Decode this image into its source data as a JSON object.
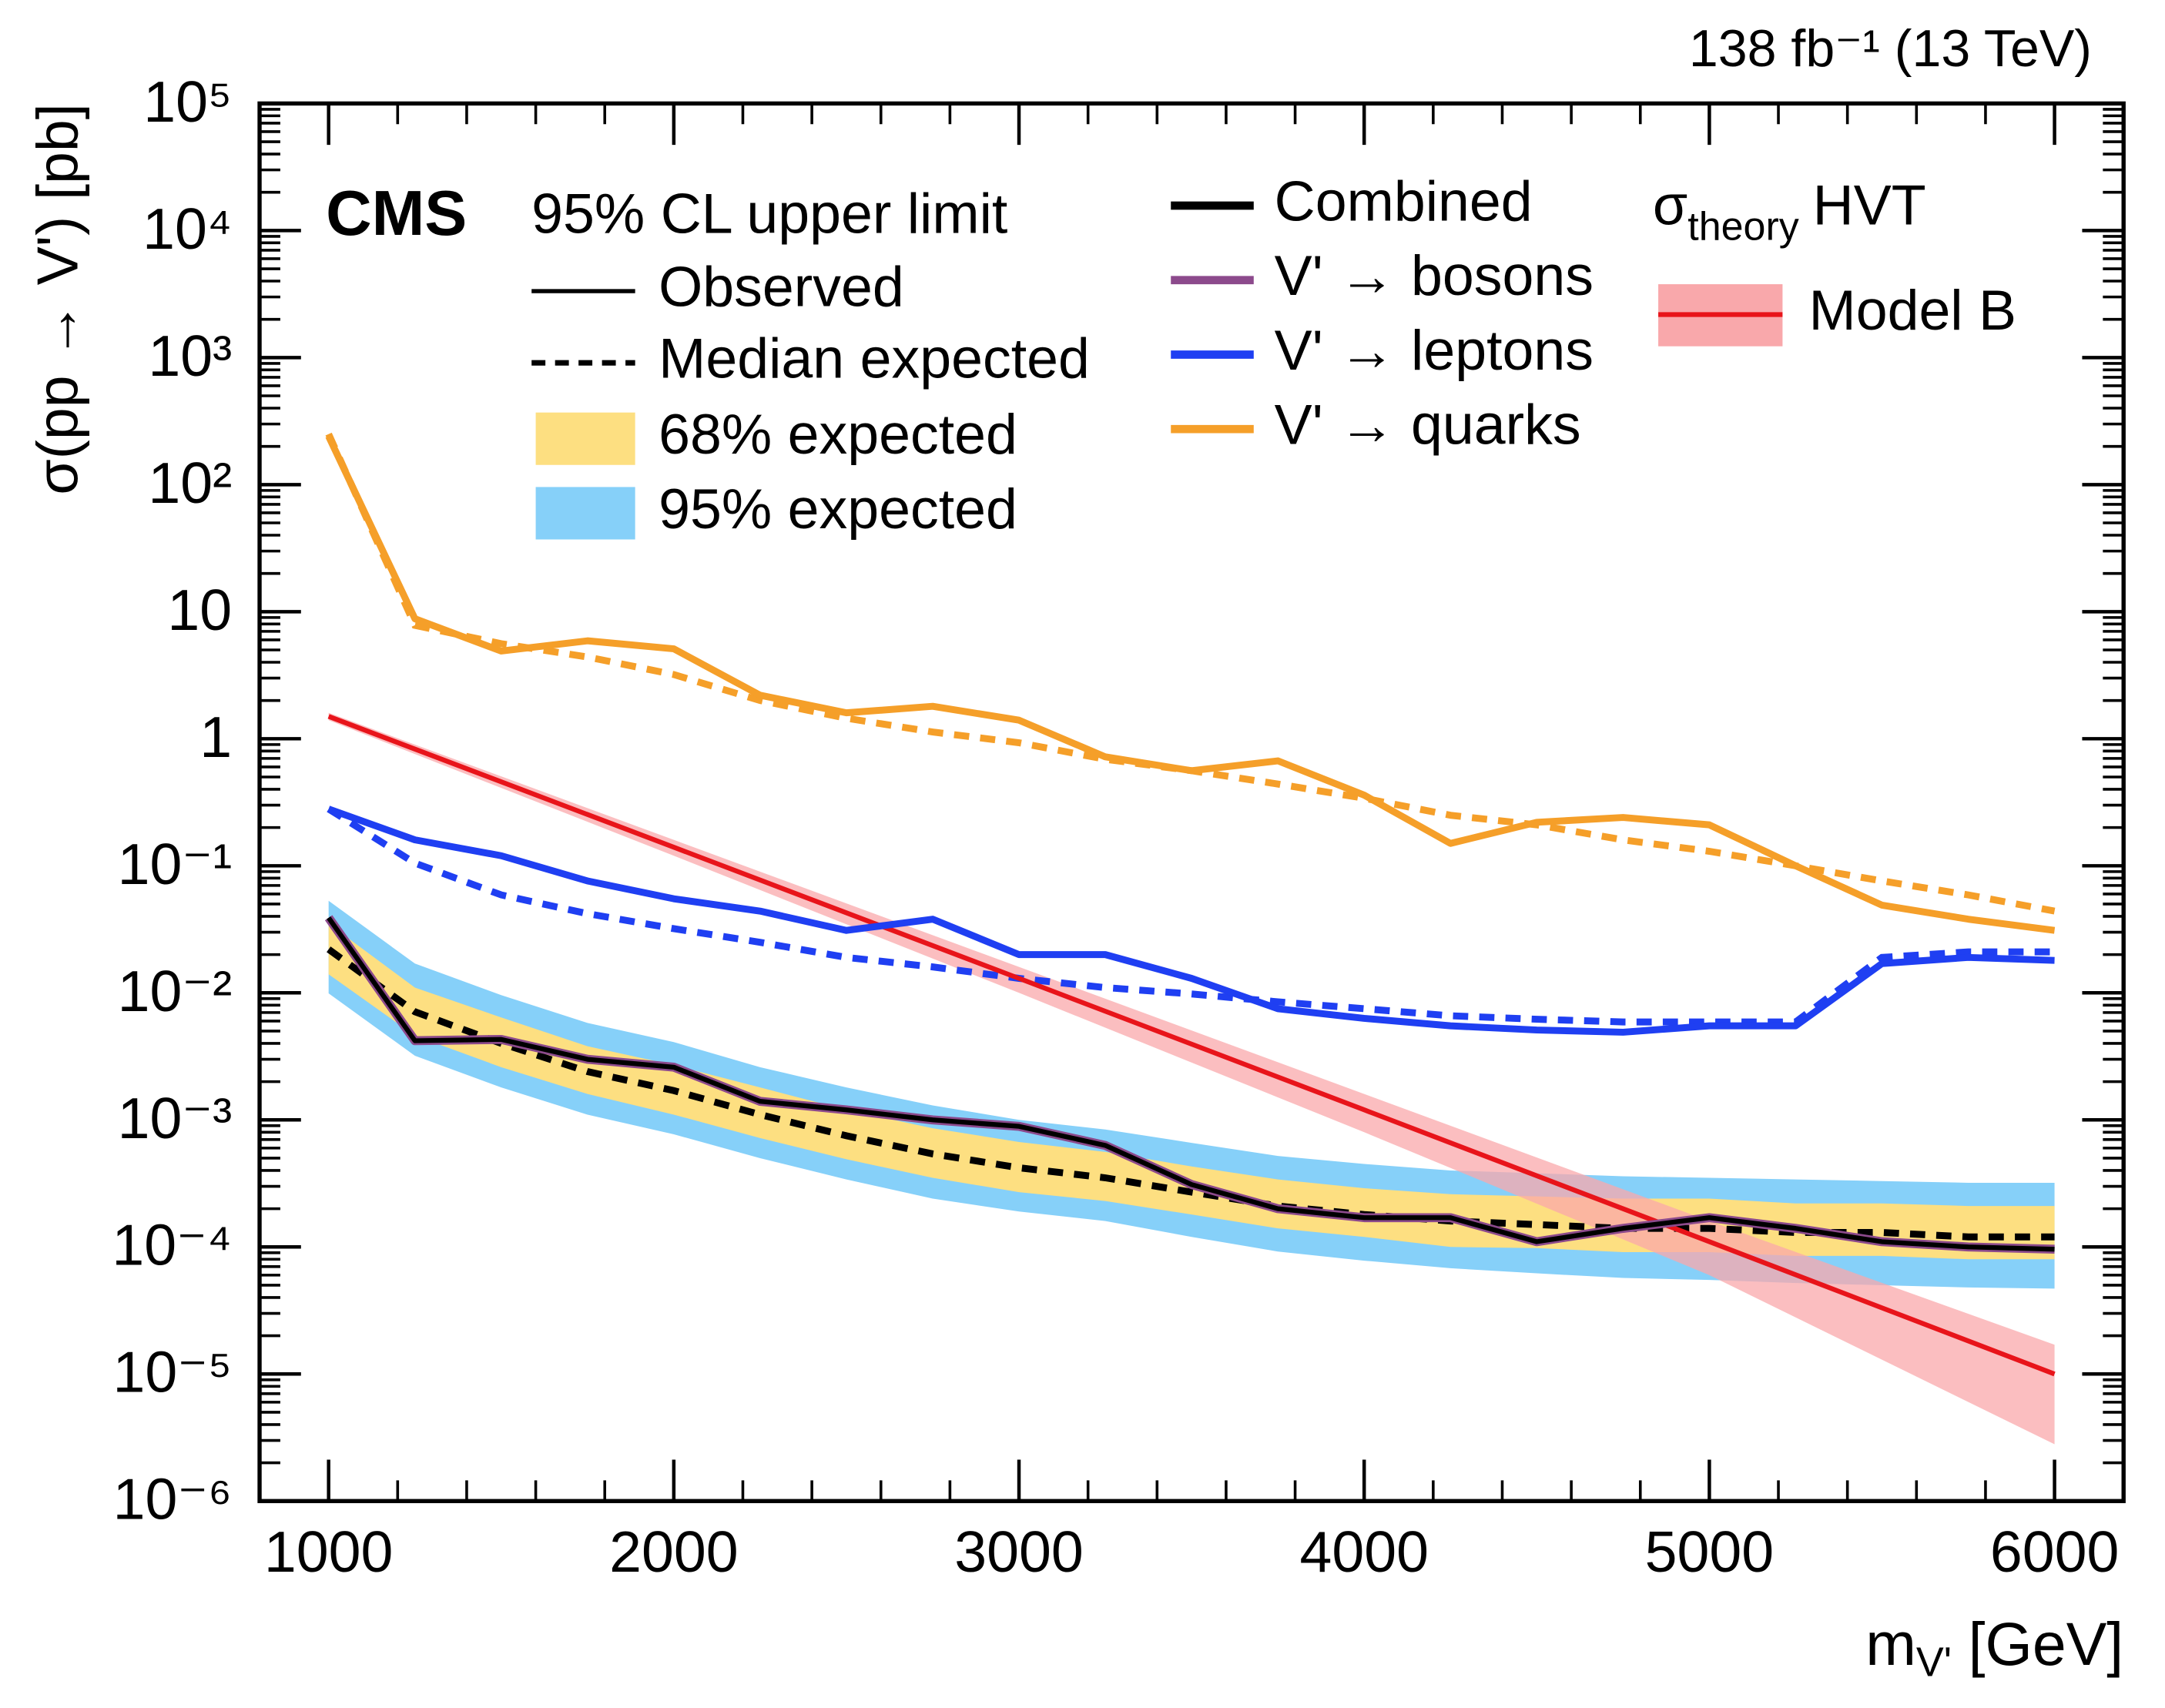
{
  "chart_data": {
    "type": "line",
    "experiment": "CMS",
    "lumi": "138 fb⁻¹ (13 TeV)",
    "y_label": "σ(pp → V') [pb]",
    "x_label": "m",
    "x_label_sub": "V'",
    "x_label_unit": "[GeV]",
    "legend_header": "95% CL upper limit",
    "style_legend": [
      {
        "name": "Observed",
        "dashed": false
      },
      {
        "name": "Median expected",
        "dashed": true
      }
    ],
    "xlim": [
      800,
      6200
    ],
    "xticks": [
      1000,
      2000,
      3000,
      4000,
      5000,
      6000
    ],
    "log_y": true,
    "ylim": [
      1e-06,
      100000
    ],
    "yticks": [
      {
        "value": 1e-06,
        "label": "10⁻⁶"
      },
      {
        "value": 1e-05,
        "label": "10⁻⁵"
      },
      {
        "value": 0.0001,
        "label": "10⁻⁴"
      },
      {
        "value": 0.001,
        "label": "10⁻³"
      },
      {
        "value": 0.01,
        "label": "10⁻²"
      },
      {
        "value": 0.1,
        "label": "10⁻¹"
      },
      1,
      10,
      {
        "value": 100,
        "label": "10²"
      },
      {
        "value": 1000,
        "label": "10³"
      },
      {
        "value": 10000,
        "label": "10⁴"
      },
      {
        "value": 100000,
        "label": "10⁵"
      }
    ],
    "x": [
      1000,
      1250,
      1500,
      1750,
      2000,
      2250,
      2500,
      2750,
      3000,
      3250,
      3500,
      3750,
      4000,
      4250,
      4500,
      4750,
      5000,
      5250,
      5500,
      5750,
      6000
    ],
    "bands": [
      {
        "name": "68% expected",
        "color": "#fddf81",
        "lo": [
          0.014,
          0.0046,
          0.0026,
          0.0016,
          0.0011,
          0.00072,
          0.00049,
          0.00035,
          0.00027,
          0.00023,
          0.00018,
          0.00014,
          0.00012,
          0.0001,
          9.8e-05,
          9.1e-05,
          9.1e-05,
          8.5e-05,
          8.5e-05,
          8e-05,
          8e-05
        ],
        "hi": [
          0.035,
          0.011,
          0.0064,
          0.0038,
          0.0027,
          0.0018,
          0.0012,
          0.00086,
          0.00067,
          0.00056,
          0.00043,
          0.00034,
          0.00029,
          0.00026,
          0.00025,
          0.00024,
          0.00024,
          0.00022,
          0.00022,
          0.00021,
          0.00021
        ]
      },
      {
        "name": "95% expected",
        "color": "#86d0f9",
        "lo": [
          0.0099,
          0.0032,
          0.0018,
          0.0011,
          0.00077,
          0.0005,
          0.00034,
          0.00024,
          0.00019,
          0.00016,
          0.00012,
          9.2e-05,
          7.8e-05,
          6.8e-05,
          6.2e-05,
          5.7e-05,
          5.5e-05,
          5.2e-05,
          5e-05,
          4.8e-05,
          4.7e-05
        ],
        "hi": [
          0.053,
          0.017,
          0.0096,
          0.0058,
          0.0041,
          0.0026,
          0.0018,
          0.0013,
          0.001,
          0.00084,
          0.00066,
          0.00052,
          0.00045,
          0.0004,
          0.00038,
          0.00036,
          0.00035,
          0.00034,
          0.00033,
          0.00032,
          0.00032
        ]
      }
    ],
    "series": [
      {
        "name": "Combined",
        "color": "#000000",
        "values": [
          0.039,
          0.0042,
          0.0043,
          0.003,
          0.0026,
          0.0014,
          0.0012,
          0.001,
          0.00089,
          0.00063,
          0.00031,
          0.0002,
          0.00017,
          0.00017,
          0.00011,
          0.00014,
          0.00017,
          0.00014,
          0.00011,
          0.0001,
          9.6e-05
        ],
        "expected": [
          0.022,
          0.0071,
          0.004,
          0.0024,
          0.0017,
          0.0011,
          0.00075,
          0.00054,
          0.00042,
          0.00035,
          0.00027,
          0.00021,
          0.00018,
          0.00016,
          0.00015,
          0.00014,
          0.00014,
          0.00013,
          0.00013,
          0.00012,
          0.00012
        ]
      },
      {
        "name": "V' → bosons",
        "color": "#8c4a8c",
        "values": [
          0.039,
          0.0042,
          0.0043,
          0.003,
          0.0026,
          0.0014,
          0.0012,
          0.001,
          0.00089,
          0.00063,
          0.00031,
          0.0002,
          0.00017,
          0.00017,
          0.00011,
          0.00014,
          0.00017,
          0.00014,
          0.00011,
          0.0001,
          9.6e-05
        ]
      },
      {
        "name": "V' → leptons",
        "color": "#1f3ff2",
        "values": [
          0.28,
          0.16,
          0.12,
          0.076,
          0.055,
          0.044,
          0.031,
          0.038,
          0.02,
          0.02,
          0.013,
          0.0075,
          0.0063,
          0.0055,
          0.0051,
          0.0049,
          0.0055,
          0.0055,
          0.017,
          0.019,
          0.018
        ],
        "expected": [
          0.28,
          0.105,
          0.059,
          0.042,
          0.032,
          0.025,
          0.019,
          0.016,
          0.013,
          0.011,
          0.0098,
          0.0085,
          0.0075,
          0.0066,
          0.0062,
          0.0059,
          0.0059,
          0.0059,
          0.019,
          0.021,
          0.021
        ]
      },
      {
        "name": "V' → quarks",
        "color": "#f59f29",
        "values": [
          240,
          8.8,
          4.9,
          5.9,
          5.1,
          2.2,
          1.6,
          1.8,
          1.4,
          0.72,
          0.56,
          0.67,
          0.36,
          0.15,
          0.22,
          0.24,
          0.21,
          0.1,
          0.049,
          0.038,
          0.031
        ],
        "expected": [
          250,
          7.8,
          5.6,
          4.4,
          3.2,
          2.0,
          1.45,
          1.13,
          0.93,
          0.69,
          0.56,
          0.44,
          0.34,
          0.25,
          0.21,
          0.16,
          0.13,
          0.1,
          0.076,
          0.059,
          0.044
        ]
      }
    ],
    "theory": {
      "label": "σ",
      "label_sub": "theory",
      "label_suffix": "HVT",
      "name": "Model B",
      "color": "#e8141a",
      "band_color": "#f9a8ab",
      "x": [
        1000,
        2000,
        3000,
        4000,
        5000,
        6000
      ],
      "values": [
        1.5,
        0.14,
        0.013,
        0.0012,
        0.00011,
        1e-05
      ],
      "lo": [
        1.4,
        0.12,
        0.01,
        0.0008,
        6e-05,
        2.8e-06
      ],
      "hi": [
        1.6,
        0.16,
        0.016,
        0.0016,
        0.00016,
        1.7e-05
      ]
    }
  }
}
